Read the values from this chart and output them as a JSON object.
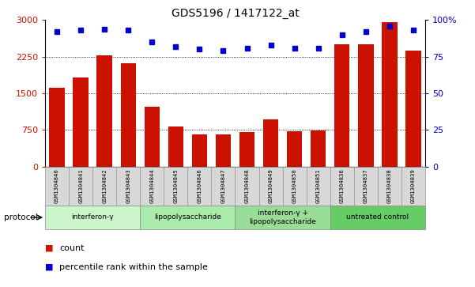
{
  "title": "GDS5196 / 1417122_at",
  "samples": [
    "GSM1304840",
    "GSM1304841",
    "GSM1304842",
    "GSM1304843",
    "GSM1304844",
    "GSM1304845",
    "GSM1304846",
    "GSM1304847",
    "GSM1304848",
    "GSM1304849",
    "GSM1304850",
    "GSM1304851",
    "GSM1304836",
    "GSM1304837",
    "GSM1304838",
    "GSM1304839"
  ],
  "counts": [
    1610,
    1820,
    2270,
    2120,
    1230,
    820,
    660,
    665,
    700,
    960,
    720,
    730,
    2500,
    2500,
    2960,
    2380
  ],
  "percentiles": [
    92,
    93,
    94,
    93,
    85,
    82,
    80,
    79,
    81,
    83,
    81,
    81,
    90,
    92,
    96,
    93
  ],
  "groups": [
    {
      "label": "interferon-γ",
      "start": 0,
      "end": 3,
      "color": "#ccf5cc"
    },
    {
      "label": "lipopolysaccharide",
      "start": 4,
      "end": 7,
      "color": "#aaeaaa"
    },
    {
      "label": "interferon-γ +\nlipopolysaccharide",
      "start": 8,
      "end": 11,
      "color": "#99dd99"
    },
    {
      "label": "untreated control",
      "start": 12,
      "end": 15,
      "color": "#66cc66"
    }
  ],
  "ylim_left": [
    0,
    3000
  ],
  "ylim_right": [
    0,
    100
  ],
  "yticks_left": [
    0,
    750,
    1500,
    2250,
    3000
  ],
  "yticks_right": [
    0,
    25,
    50,
    75,
    100
  ],
  "bar_color": "#cc1100",
  "dot_color": "#0000cc",
  "label_bg": "#d8d8d8",
  "bar_width": 0.65
}
